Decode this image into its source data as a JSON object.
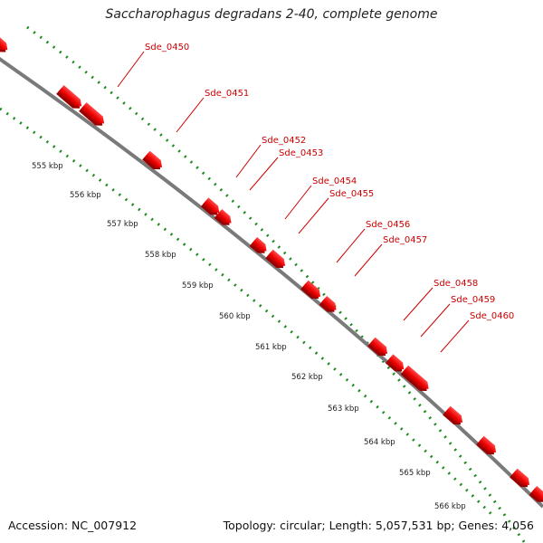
{
  "title": "Saccharophagus degradans 2-40, complete genome",
  "accession": "Accession: NC_007912",
  "summary": "Topology: circular; Length: 5,057,531 bp; Genes: 4,056",
  "colors": {
    "backbone": "#8a8a8a",
    "gene": "#ee0000",
    "gene_shadow": "#990000",
    "label": "#cc0000",
    "tick": "#1f8a1f"
  },
  "genes": [
    {
      "label": "Sde_0450",
      "leader_from": [
        159,
        57
      ],
      "leader_to": [
        130,
        96
      ]
    },
    {
      "label": "Sde_0451",
      "leader_from": [
        225,
        108
      ],
      "leader_to": [
        195,
        146
      ]
    },
    {
      "label": "Sde_0452",
      "leader_from": [
        288,
        160
      ],
      "leader_to": [
        261,
        196
      ]
    },
    {
      "label": "Sde_0453",
      "leader_from": [
        307,
        174
      ],
      "leader_to": [
        276,
        210
      ]
    },
    {
      "label": "Sde_0454",
      "leader_from": [
        344,
        205
      ],
      "leader_to": [
        315,
        242
      ]
    },
    {
      "label": "Sde_0455",
      "leader_from": [
        363,
        219
      ],
      "leader_to": [
        330,
        258
      ]
    },
    {
      "label": "Sde_0456",
      "leader_from": [
        403,
        253
      ],
      "leader_to": [
        372,
        290
      ]
    },
    {
      "label": "Sde_0457",
      "leader_from": [
        422,
        270
      ],
      "leader_to": [
        392,
        305
      ]
    },
    {
      "label": "Sde_0458",
      "leader_from": [
        478,
        318
      ],
      "leader_to": [
        446,
        354
      ]
    },
    {
      "label": "Sde_0459",
      "leader_from": [
        497,
        336
      ],
      "leader_to": [
        465,
        372
      ]
    },
    {
      "label": "Sde_0460",
      "leader_from": [
        518,
        354
      ],
      "leader_to": [
        487,
        389
      ]
    }
  ],
  "scale_labels": [
    "555 kbp",
    "556 kbp",
    "557 kbp",
    "558 kbp",
    "559 kbp",
    "560 kbp",
    "561 kbp",
    "562 kbp",
    "563 kbp",
    "564 kbp",
    "565 kbp",
    "566 kbp"
  ]
}
